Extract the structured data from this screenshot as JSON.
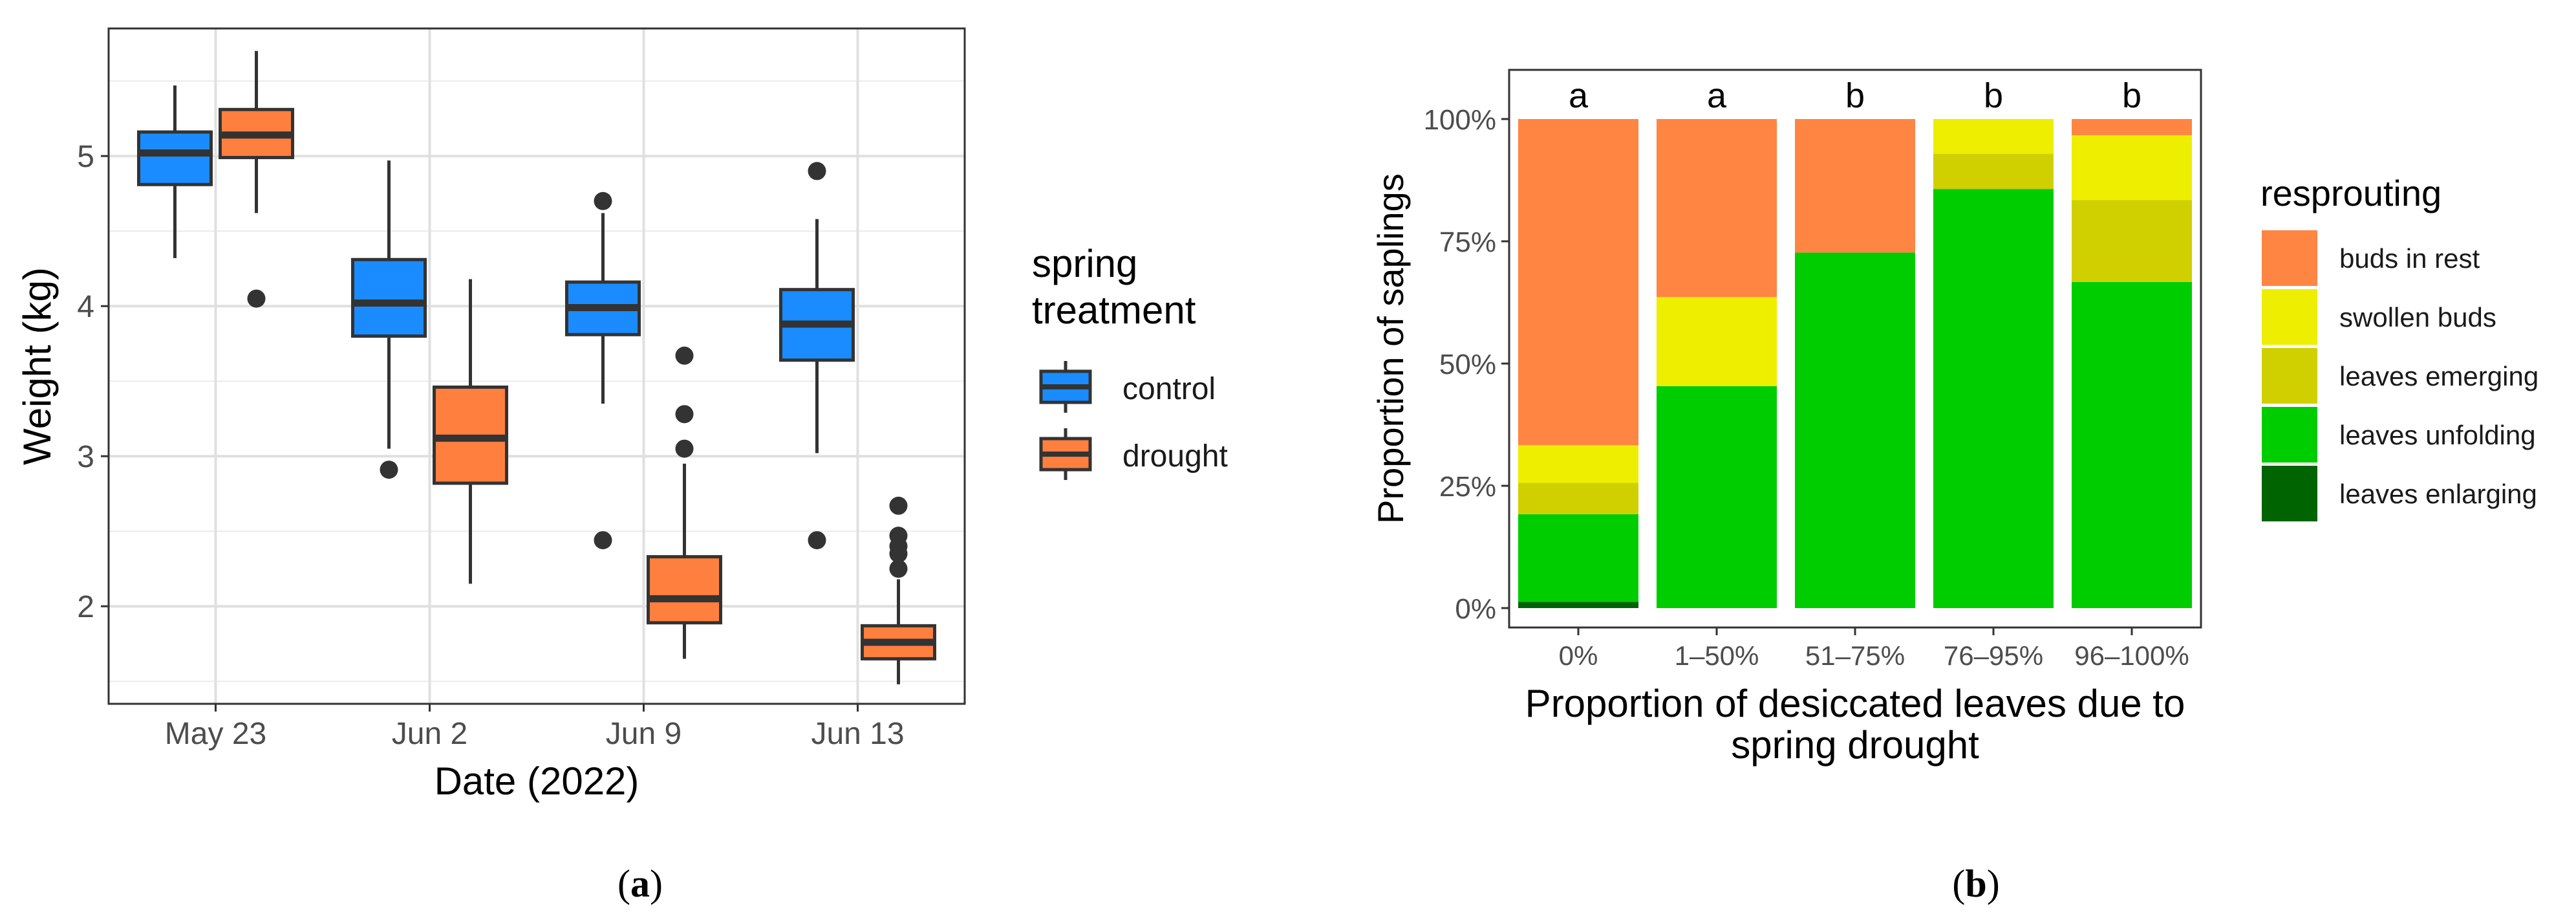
{
  "chart_data": [
    {
      "panel": "a",
      "type": "box",
      "caption": "(a)",
      "caption_paren_open": "(",
      "caption_letter": "a",
      "caption_paren_close": ")",
      "xlabel": "Date (2022)",
      "ylabel": "Weight (kg)",
      "ylim": [
        1.35,
        5.85
      ],
      "yticks": [
        2,
        3,
        4,
        5
      ],
      "ytick_labels": [
        "2",
        "3",
        "4",
        "5"
      ],
      "categories": [
        "May 23",
        "Jun 2",
        "Jun 9",
        "Jun 13"
      ],
      "legend_title_lines": [
        "spring",
        "treatment"
      ],
      "legend": [
        {
          "name": "control",
          "color": "#1a8cff"
        },
        {
          "name": "drought",
          "color": "#ff7f3f"
        }
      ],
      "series": [
        {
          "name": "control",
          "color": "#1a8cff",
          "boxes": [
            {
              "min": 4.32,
              "q1": 4.81,
              "median": 5.02,
              "q3": 5.16,
              "max": 5.47,
              "outliers": []
            },
            {
              "min": 3.05,
              "q1": 3.8,
              "median": 4.02,
              "q3": 4.31,
              "max": 4.97,
              "outliers": [
                2.91
              ]
            },
            {
              "min": 3.35,
              "q1": 3.81,
              "median": 3.99,
              "q3": 4.16,
              "max": 4.62,
              "outliers": [
                4.7,
                2.44
              ]
            },
            {
              "min": 3.02,
              "q1": 3.64,
              "median": 3.88,
              "q3": 4.11,
              "max": 4.58,
              "outliers": [
                4.9,
                2.44
              ]
            }
          ]
        },
        {
          "name": "drought",
          "color": "#ff7f3f",
          "boxes": [
            {
              "min": 4.62,
              "q1": 4.99,
              "median": 5.14,
              "q3": 5.31,
              "max": 5.7,
              "outliers": [
                4.05
              ]
            },
            {
              "min": 2.15,
              "q1": 2.82,
              "median": 3.12,
              "q3": 3.46,
              "max": 4.18,
              "outliers": []
            },
            {
              "min": 1.65,
              "q1": 1.89,
              "median": 2.05,
              "q3": 2.33,
              "max": 2.95,
              "outliers": [
                3.67,
                3.28,
                3.05
              ]
            },
            {
              "min": 1.48,
              "q1": 1.65,
              "median": 1.76,
              "q3": 1.87,
              "max": 2.18,
              "outliers": [
                2.67,
                2.47,
                2.4,
                2.35,
                2.25
              ]
            }
          ]
        }
      ]
    },
    {
      "panel": "b",
      "type": "stacked_bar",
      "caption": "(b)",
      "caption_paren_open": "(",
      "caption_letter": "b",
      "caption_paren_close": ")",
      "xlabel_lines": [
        "Proportion of desiccated leaves due to",
        "spring drought"
      ],
      "ylabel": "Proportion of saplings",
      "ylim": [
        0,
        1.1
      ],
      "yticks": [
        0,
        0.25,
        0.5,
        0.75,
        1.0
      ],
      "ytick_labels": [
        "0%",
        "25%",
        "50%",
        "75%",
        "100%"
      ],
      "categories": [
        "0%",
        "1–50%",
        "51–75%",
        "76–95%",
        "96–100%"
      ],
      "group_letters": [
        "a",
        "a",
        "b",
        "b",
        "b"
      ],
      "legend_title": "resprouting",
      "stack_order_bottom_to_top": [
        "leaves enlarging",
        "leaves unfolding",
        "leaves emerging",
        "swollen buds",
        "buds in rest"
      ],
      "series": [
        {
          "name": "buds in rest",
          "color": "#ff8543",
          "values": [
            0.667,
            0.364,
            0.273,
            0.0,
            0.033
          ]
        },
        {
          "name": "swollen buds",
          "color": "#eeee00",
          "values": [
            0.077,
            0.182,
            0.0,
            0.071,
            0.133
          ]
        },
        {
          "name": "leaves emerging",
          "color": "#d0d000",
          "values": [
            0.064,
            0.0,
            0.0,
            0.072,
            0.167
          ]
        },
        {
          "name": "leaves unfolding",
          "color": "#00cd00",
          "values": [
            0.179,
            0.454,
            0.727,
            0.857,
            0.667
          ]
        },
        {
          "name": "leaves enlarging",
          "color": "#006400",
          "values": [
            0.013,
            0.0,
            0.0,
            0.0,
            0.0
          ]
        }
      ]
    }
  ]
}
